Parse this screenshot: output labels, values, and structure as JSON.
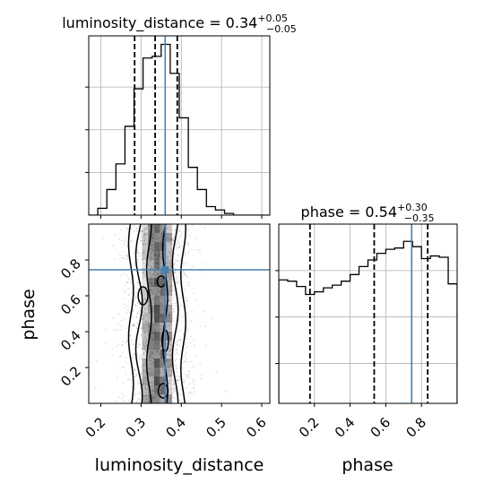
{
  "chart_data": [
    {
      "type": "histogram",
      "panel": "top-left",
      "parameter": "luminosity_distance",
      "title": {
        "main": "luminosity_distance = 0.34",
        "plus": "+0.05",
        "minus": "−0.05"
      },
      "median": 0.34,
      "err_plus": 0.05,
      "err_minus": 0.05,
      "quantiles": [
        0.284,
        0.335,
        0.39
      ],
      "truth": 0.36,
      "xlim": [
        0.17,
        0.62
      ],
      "ylim": [
        0,
        1.05
      ],
      "yticks": [
        0.25,
        0.5,
        0.75
      ],
      "bin_edges": [
        0.17,
        0.1925,
        0.215,
        0.2375,
        0.26,
        0.2825,
        0.305,
        0.3275,
        0.35,
        0.3725,
        0.395,
        0.4175,
        0.44,
        0.4625,
        0.485,
        0.5075,
        0.53,
        0.5525,
        0.575,
        0.5975,
        0.62
      ],
      "counts": [
        0.0,
        0.04,
        0.15,
        0.3,
        0.52,
        0.74,
        0.92,
        0.93,
        1.0,
        0.83,
        0.57,
        0.28,
        0.15,
        0.05,
        0.03,
        0.01,
        0.0,
        0.0,
        0.0,
        0.0
      ],
      "grid": true
    },
    {
      "type": "histogram",
      "panel": "bottom-right",
      "parameter": "phase",
      "title": {
        "main": "phase = 0.54",
        "plus": "+0.30",
        "minus": "−0.35"
      },
      "median": 0.54,
      "err_plus": 0.3,
      "err_minus": 0.35,
      "quantiles": [
        0.175,
        0.535,
        0.835
      ],
      "truth": 0.745,
      "xlim": [
        0.0,
        1.0
      ],
      "ylim": [
        0,
        1.35
      ],
      "yticks": [
        0.3,
        0.65,
        1.0
      ],
      "xticks": [
        0.2,
        0.4,
        0.6,
        0.8
      ],
      "xtick_labels": [
        "0.2",
        "0.4",
        "0.6",
        "0.8"
      ],
      "xlabel": "phase",
      "bin_edges": [
        0.0,
        0.05,
        0.1,
        0.15,
        0.2,
        0.25,
        0.3,
        0.35,
        0.4,
        0.45,
        0.5,
        0.55,
        0.6,
        0.65,
        0.7,
        0.75,
        0.8,
        0.85,
        0.9,
        0.95,
        1.0
      ],
      "counts": [
        0.93,
        0.92,
        0.88,
        0.82,
        0.84,
        0.87,
        0.89,
        0.92,
        0.97,
        1.03,
        1.08,
        1.13,
        1.16,
        1.17,
        1.22,
        1.18,
        1.09,
        1.11,
        1.1,
        0.9
      ],
      "grid": true
    },
    {
      "type": "2d-density",
      "panel": "bottom-left",
      "x_parameter": "luminosity_distance",
      "y_parameter": "phase",
      "xlabel": "luminosity_distance",
      "ylabel": "phase",
      "xlim": [
        0.17,
        0.62
      ],
      "ylim": [
        0.0,
        1.0
      ],
      "xticks": [
        0.2,
        0.3,
        0.4,
        0.5,
        0.6
      ],
      "xtick_labels": [
        "0.2",
        "0.3",
        "0.4",
        "0.5",
        "0.6"
      ],
      "yticks": [
        0.2,
        0.4,
        0.6,
        0.8
      ],
      "ytick_labels": [
        "0.2",
        "0.4",
        "0.6",
        "0.8"
      ],
      "truth": [
        0.36,
        0.745
      ],
      "grid": true,
      "line_color": "#4682b4",
      "contour_color": "#000000"
    }
  ]
}
